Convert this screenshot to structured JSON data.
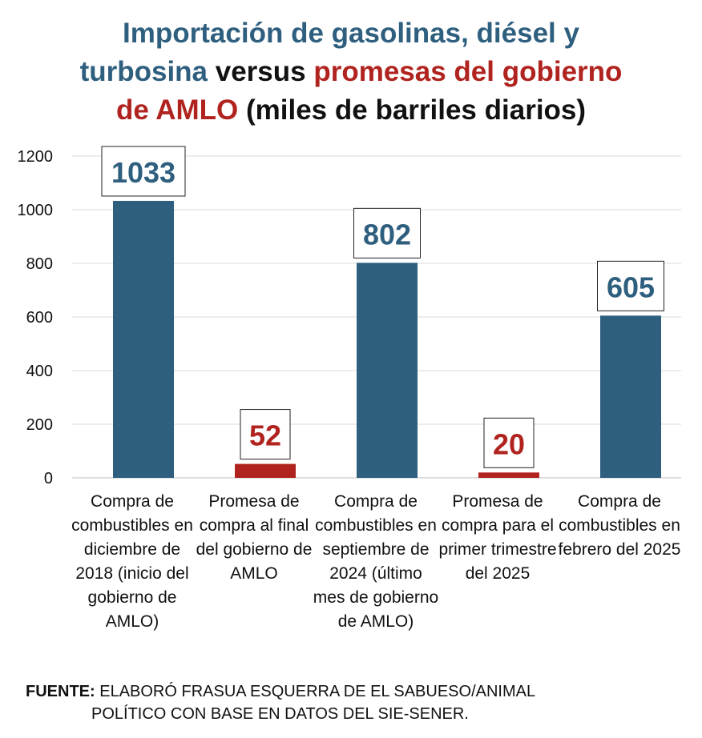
{
  "title": {
    "part1": "Importación de gasolinas, diésel y",
    "part2": "turbosina",
    "part3": " versus ",
    "part4": "promesas del gobierno",
    "part5": "de AMLO",
    "part6": " (miles de barriles diarios)"
  },
  "colors": {
    "blue": "#2f5f7f",
    "red": "#b0231e"
  },
  "chart_data": {
    "type": "bar",
    "categories": [
      "Compra de combustibles en diciembre de 2018 (inicio del gobierno de AMLO)",
      "Promesa de compra al final del gobierno de AMLO",
      "Compra de combustibles en septiembre de 2024 (último mes de gobierno de AMLO)",
      "Promesa de compra para el primer trimestre del 2025",
      "Compra de combustibles en febrero del 2025"
    ],
    "values": [
      1033,
      52,
      802,
      20,
      605
    ],
    "data_labels": [
      "1033",
      "52",
      "802",
      "20",
      "605"
    ],
    "bar_colors": [
      "#2f5f7f",
      "#b0231e",
      "#2f5f7f",
      "#b0231e",
      "#2f5f7f"
    ],
    "ylim": [
      0,
      1200
    ],
    "yticks": [
      "0",
      "200",
      "400",
      "600",
      "800",
      "1000",
      "1200"
    ],
    "grid": true,
    "legend": "none"
  },
  "source": {
    "label": "FUENTE:",
    "line1": " ELABORÓ FRASUA ESQUERRA DE EL SABUESO/ANIMAL",
    "line2": "POLÍTICO CON BASE EN DATOS DEL SIE-SENER."
  }
}
